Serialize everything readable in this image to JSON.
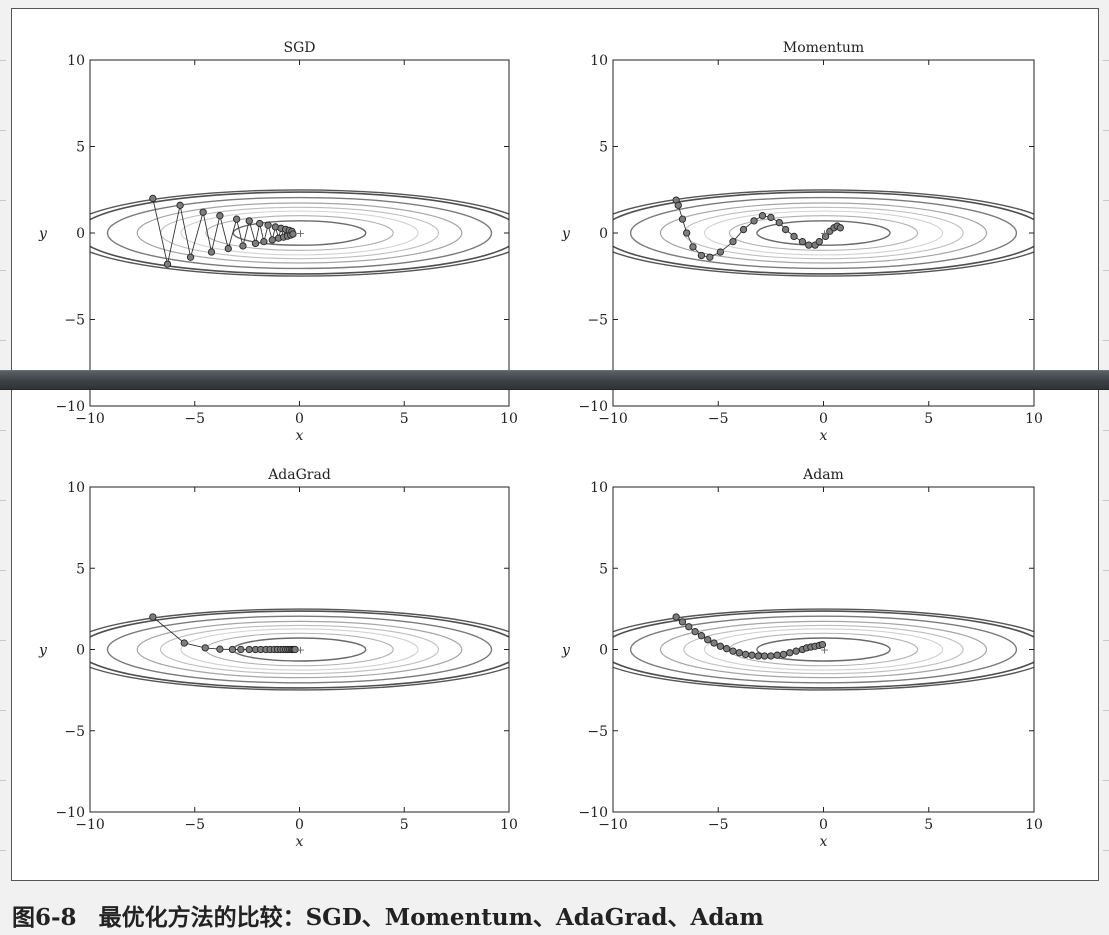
{
  "chart_data": [
    {
      "type": "scatter",
      "title": "SGD",
      "xlabel": "x",
      "ylabel": "y",
      "xlim": [
        -10,
        10
      ],
      "ylim": [
        -10,
        10
      ],
      "xticks": [
        "−10",
        "−5",
        "0",
        "5",
        "10"
      ],
      "yticks": [
        "−10",
        "−5",
        "0",
        "5",
        "10"
      ],
      "grid": false,
      "background": "elliptical contour lines of f(x,y) = x²/20 + y² centered at the origin",
      "series": [
        {
          "x": [
            -7.0,
            -6.3,
            -5.7,
            -5.2,
            -4.6,
            -4.2,
            -3.8,
            -3.4,
            -3.0,
            -2.7,
            -2.4,
            -2.1,
            -1.9,
            -1.7,
            -1.5,
            -1.3,
            -1.15,
            -1.0,
            -0.88,
            -0.76,
            -0.66,
            -0.57,
            -0.49,
            -0.42,
            -0.36,
            -0.31
          ],
          "y": [
            2.0,
            -1.8,
            1.6,
            -1.4,
            1.2,
            -1.1,
            1.0,
            -0.9,
            0.8,
            -0.75,
            0.7,
            -0.6,
            0.55,
            -0.5,
            0.45,
            -0.4,
            0.35,
            -0.3,
            0.27,
            -0.24,
            0.21,
            -0.18,
            0.15,
            -0.12,
            0.09,
            -0.06
          ]
        }
      ]
    },
    {
      "type": "scatter",
      "title": "Momentum",
      "xlabel": "x",
      "ylabel": "y",
      "xlim": [
        -10,
        10
      ],
      "ylim": [
        -10,
        10
      ],
      "xticks": [
        "−10",
        "−5",
        "0",
        "5",
        "10"
      ],
      "yticks": [
        "−10",
        "−5",
        "0",
        "5",
        "10"
      ],
      "grid": false,
      "background": "elliptical contour lines of f(x,y) = x²/20 + y² centered at the origin",
      "series": [
        {
          "x": [
            -7.0,
            -6.9,
            -6.7,
            -6.5,
            -6.2,
            -5.8,
            -5.4,
            -4.9,
            -4.3,
            -3.8,
            -3.3,
            -2.9,
            -2.5,
            -2.1,
            -1.8,
            -1.4,
            -1.0,
            -0.7,
            -0.4,
            -0.2,
            0.1,
            0.3,
            0.5,
            0.65,
            0.8
          ],
          "y": [
            1.9,
            1.6,
            0.8,
            0.0,
            -0.8,
            -1.3,
            -1.4,
            -1.1,
            -0.5,
            0.2,
            0.7,
            1.0,
            0.9,
            0.6,
            0.2,
            -0.2,
            -0.5,
            -0.7,
            -0.7,
            -0.5,
            -0.2,
            0.1,
            0.3,
            0.4,
            0.3
          ]
        }
      ]
    },
    {
      "type": "scatter",
      "title": "AdaGrad",
      "xlabel": "x",
      "ylabel": "y",
      "xlim": [
        -10,
        10
      ],
      "ylim": [
        -10,
        10
      ],
      "xticks": [
        "−10",
        "−5",
        "0",
        "5",
        "10"
      ],
      "yticks": [
        "−10",
        "−5",
        "0",
        "5",
        "10"
      ],
      "grid": false,
      "background": "elliptical contour lines of f(x,y) = x²/20 + y² centered at the origin",
      "series": [
        {
          "x": [
            -7.0,
            -5.5,
            -4.5,
            -3.8,
            -3.2,
            -2.8,
            -2.4,
            -2.1,
            -1.85,
            -1.6,
            -1.4,
            -1.2,
            -1.05,
            -0.9,
            -0.78,
            -0.66,
            -0.56,
            -0.47,
            -0.39,
            -0.32,
            -0.26,
            -0.21
          ],
          "y": [
            2.0,
            0.4,
            0.1,
            0.02,
            0.0,
            0.0,
            0.0,
            0.0,
            0.0,
            0.0,
            0.0,
            0.0,
            0.0,
            0.0,
            0.0,
            0.0,
            0.0,
            0.0,
            0.0,
            0.0,
            0.0,
            0.0
          ]
        }
      ]
    },
    {
      "type": "scatter",
      "title": "Adam",
      "xlabel": "x",
      "ylabel": "y",
      "xlim": [
        -10,
        10
      ],
      "ylim": [
        -10,
        10
      ],
      "xticks": [
        "−10",
        "−5",
        "0",
        "5",
        "10"
      ],
      "yticks": [
        "−10",
        "−5",
        "0",
        "5",
        "10"
      ],
      "grid": false,
      "background": "elliptical contour lines of f(x,y) = x²/20 + y² centered at the origin",
      "series": [
        {
          "x": [
            -7.0,
            -6.7,
            -6.4,
            -6.1,
            -5.8,
            -5.5,
            -5.2,
            -4.9,
            -4.6,
            -4.3,
            -4.0,
            -3.7,
            -3.4,
            -3.1,
            -2.8,
            -2.5,
            -2.2,
            -1.9,
            -1.6,
            -1.3,
            -1.0,
            -0.8,
            -0.6,
            -0.4,
            -0.2,
            -0.05
          ],
          "y": [
            2.0,
            1.7,
            1.4,
            1.1,
            0.85,
            0.6,
            0.4,
            0.2,
            0.05,
            -0.1,
            -0.2,
            -0.3,
            -0.35,
            -0.4,
            -0.4,
            -0.4,
            -0.35,
            -0.3,
            -0.2,
            -0.1,
            0.0,
            0.1,
            0.15,
            0.2,
            0.25,
            0.3
          ]
        }
      ]
    }
  ],
  "caption": {
    "figure_number": "图6-8",
    "text": "最优化方法的比较：SGD、Momentum、AdaGrad、Adam"
  }
}
